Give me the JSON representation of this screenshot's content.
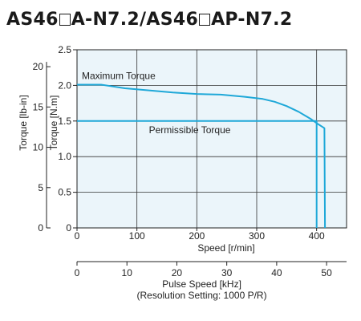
{
  "title": {
    "part1": "AS46",
    "part2": "A-N7.2/AS46",
    "part3": "AP-N7.2"
  },
  "chart_data": {
    "type": "line",
    "x": {
      "label": "Speed [r/min]",
      "range": [
        0,
        450
      ],
      "ticks": [
        0,
        100,
        200,
        300,
        400
      ]
    },
    "x2": {
      "label_line1": "Pulse Speed [kHz]",
      "label_line2": "(Resolution Setting: 1000 P/R)",
      "range": [
        0,
        54
      ],
      "ticks": [
        0,
        10,
        20,
        30,
        40,
        50
      ]
    },
    "y": {
      "label": "Torque [N.m]",
      "range": [
        0,
        2.5
      ],
      "ticks": [
        0,
        0.5,
        1.0,
        1.5,
        2.0,
        2.5
      ],
      "tick_labels": [
        "0",
        "0.5",
        "1.0",
        "1.5",
        "2.0",
        "2.5"
      ]
    },
    "y2": {
      "label": "Torque [lb-in]",
      "range": [
        0,
        22.1
      ],
      "ticks": [
        0,
        5,
        10,
        15,
        20
      ]
    },
    "grid": true,
    "series": [
      {
        "name": "Maximum Torque",
        "color": "#1fa8d8",
        "x": [
          0,
          40,
          80,
          120,
          160,
          200,
          240,
          280,
          310,
          330,
          350,
          370,
          390,
          400,
          413,
          414
        ],
        "y": [
          2.01,
          2.01,
          1.96,
          1.93,
          1.9,
          1.88,
          1.87,
          1.84,
          1.81,
          1.77,
          1.71,
          1.63,
          1.53,
          1.47,
          1.4,
          0
        ]
      },
      {
        "name": "Permissible Torque",
        "color": "#1fa8d8",
        "x": [
          0,
          400,
          400
        ],
        "y": [
          1.5,
          1.5,
          0
        ]
      }
    ]
  }
}
